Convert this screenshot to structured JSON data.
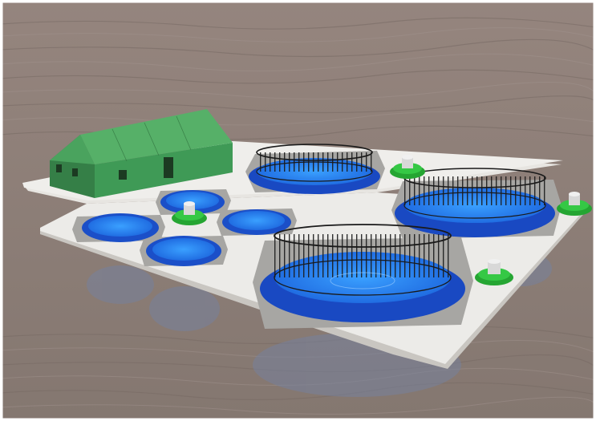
{
  "scene": {
    "description_colors": {
      "water": "#8a7b75",
      "water_dark": "#6f625d",
      "platform": "#ecebe8",
      "platform_edge": "#c9c6c1",
      "hexagon_pad": "#9a9a98",
      "tank_blue": "#1f5fe0",
      "tank_water": "#2d8cf0",
      "fence": "#1d1d1d",
      "building_green": "#3d9a55",
      "feeder_green": "#2fbf3a",
      "reflection": "#6f7b9a"
    }
  }
}
